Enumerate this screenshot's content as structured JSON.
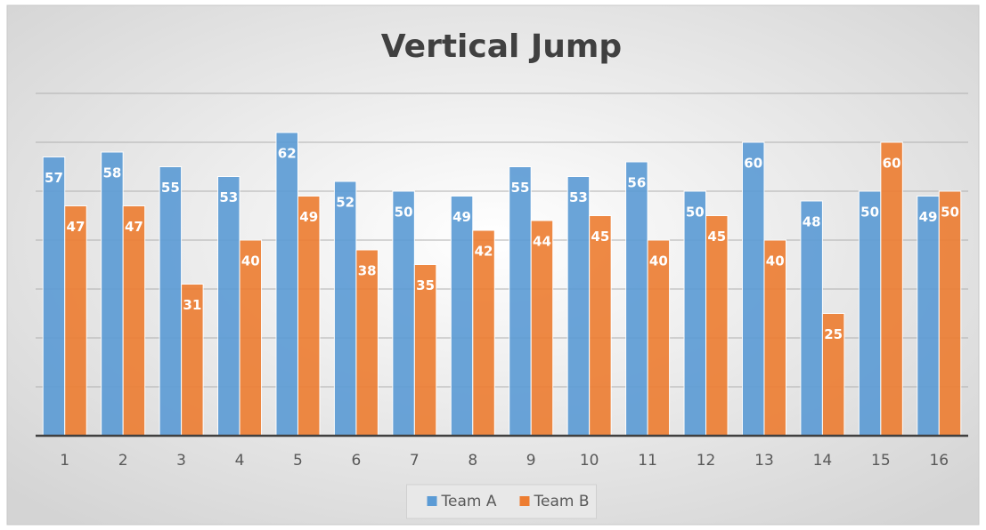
{
  "chart_data": {
    "type": "bar",
    "title": "Vertical Jump",
    "categories": [
      "1",
      "2",
      "3",
      "4",
      "5",
      "6",
      "7",
      "8",
      "9",
      "10",
      "11",
      "12",
      "13",
      "14",
      "15",
      "16"
    ],
    "series": [
      {
        "name": "Team A",
        "color": "#5b9bd5",
        "values": [
          57,
          58,
          55,
          53,
          62,
          52,
          50,
          49,
          55,
          53,
          56,
          50,
          60,
          48,
          50,
          49
        ]
      },
      {
        "name": "Team B",
        "color": "#ed7d31",
        "values": [
          47,
          47,
          31,
          40,
          49,
          38,
          35,
          42,
          44,
          45,
          40,
          45,
          40,
          25,
          60,
          50
        ]
      }
    ],
    "ylim": [
      0,
      70
    ],
    "yticks": [
      0,
      10,
      20,
      30,
      40,
      50,
      60,
      70
    ],
    "grid": true,
    "legend": "bottom"
  }
}
